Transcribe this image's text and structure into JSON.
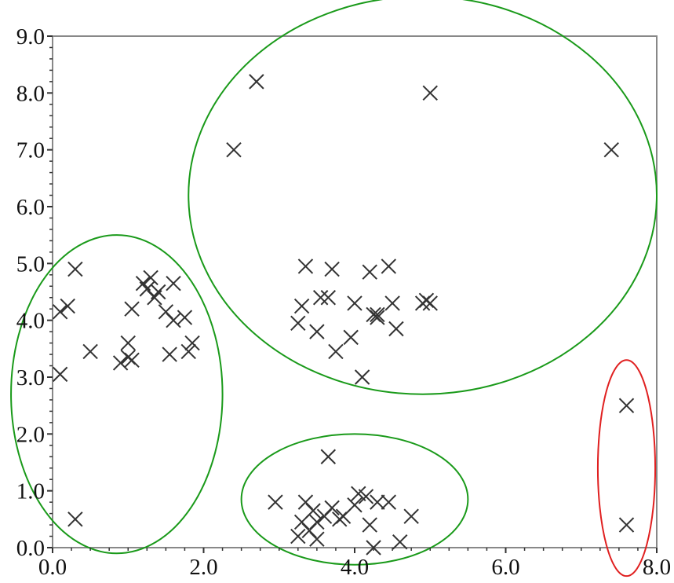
{
  "chart_data": {
    "type": "scatter",
    "title": "",
    "xlabel": "",
    "ylabel": "",
    "xlim": [
      0,
      8
    ],
    "ylim": [
      0,
      9
    ],
    "xticks": [
      "0.0",
      "2.0",
      "4.0",
      "6.0",
      "8.0"
    ],
    "yticks": [
      "0.0",
      "1.0",
      "2.0",
      "3.0",
      "4.0",
      "5.0",
      "6.0",
      "7.0",
      "8.0",
      "9.0"
    ],
    "marker": "x",
    "marker_color": "#333333",
    "grid": false,
    "points": [
      {
        "x": 0.1,
        "y": 3.05
      },
      {
        "x": 0.1,
        "y": 4.15
      },
      {
        "x": 0.2,
        "y": 4.25
      },
      {
        "x": 0.3,
        "y": 4.9
      },
      {
        "x": 0.3,
        "y": 0.5
      },
      {
        "x": 0.5,
        "y": 3.45
      },
      {
        "x": 0.9,
        "y": 3.25
      },
      {
        "x": 1.0,
        "y": 3.35
      },
      {
        "x": 1.0,
        "y": 3.6
      },
      {
        "x": 1.05,
        "y": 3.3
      },
      {
        "x": 1.05,
        "y": 4.2
      },
      {
        "x": 1.2,
        "y": 4.65
      },
      {
        "x": 1.25,
        "y": 4.55
      },
      {
        "x": 1.3,
        "y": 4.75
      },
      {
        "x": 1.35,
        "y": 4.4
      },
      {
        "x": 1.4,
        "y": 4.5
      },
      {
        "x": 1.5,
        "y": 4.15
      },
      {
        "x": 1.55,
        "y": 3.4
      },
      {
        "x": 1.6,
        "y": 4.65
      },
      {
        "x": 1.6,
        "y": 4.0
      },
      {
        "x": 1.75,
        "y": 4.05
      },
      {
        "x": 1.8,
        "y": 3.45
      },
      {
        "x": 1.85,
        "y": 3.6
      },
      {
        "x": 2.4,
        "y": 7.0
      },
      {
        "x": 2.7,
        "y": 8.2
      },
      {
        "x": 5.0,
        "y": 8.0
      },
      {
        "x": 7.4,
        "y": 7.0
      },
      {
        "x": 3.25,
        "y": 3.95
      },
      {
        "x": 3.3,
        "y": 4.25
      },
      {
        "x": 3.35,
        "y": 4.95
      },
      {
        "x": 3.5,
        "y": 3.8
      },
      {
        "x": 3.55,
        "y": 4.4
      },
      {
        "x": 3.65,
        "y": 4.4
      },
      {
        "x": 3.7,
        "y": 4.9
      },
      {
        "x": 3.75,
        "y": 3.45
      },
      {
        "x": 3.95,
        "y": 3.7
      },
      {
        "x": 4.0,
        "y": 4.3
      },
      {
        "x": 4.1,
        "y": 3.0
      },
      {
        "x": 4.2,
        "y": 4.85
      },
      {
        "x": 4.25,
        "y": 4.1
      },
      {
        "x": 4.3,
        "y": 4.05
      },
      {
        "x": 4.3,
        "y": 4.1
      },
      {
        "x": 4.45,
        "y": 4.95
      },
      {
        "x": 4.5,
        "y": 4.3
      },
      {
        "x": 4.55,
        "y": 3.85
      },
      {
        "x": 4.9,
        "y": 4.3
      },
      {
        "x": 4.95,
        "y": 4.35
      },
      {
        "x": 5.0,
        "y": 4.3
      },
      {
        "x": 2.95,
        "y": 0.8
      },
      {
        "x": 3.25,
        "y": 0.2
      },
      {
        "x": 3.3,
        "y": 0.45
      },
      {
        "x": 3.35,
        "y": 0.8
      },
      {
        "x": 3.4,
        "y": 0.3
      },
      {
        "x": 3.45,
        "y": 0.65
      },
      {
        "x": 3.5,
        "y": 0.15
      },
      {
        "x": 3.5,
        "y": 0.45
      },
      {
        "x": 3.6,
        "y": 0.55
      },
      {
        "x": 3.65,
        "y": 1.6
      },
      {
        "x": 3.7,
        "y": 0.7
      },
      {
        "x": 3.8,
        "y": 0.5
      },
      {
        "x": 3.85,
        "y": 0.55
      },
      {
        "x": 4.0,
        "y": 0.75
      },
      {
        "x": 4.05,
        "y": 0.95
      },
      {
        "x": 4.15,
        "y": 0.9
      },
      {
        "x": 4.2,
        "y": 0.4
      },
      {
        "x": 4.25,
        "y": 0.0
      },
      {
        "x": 4.3,
        "y": 0.8
      },
      {
        "x": 4.45,
        "y": 0.8
      },
      {
        "x": 4.6,
        "y": 0.1
      },
      {
        "x": 4.75,
        "y": 0.55
      },
      {
        "x": 7.6,
        "y": 2.5
      },
      {
        "x": 7.6,
        "y": 0.4
      }
    ],
    "annotations": [
      {
        "shape": "ellipse",
        "color": "#1a9a1a",
        "cx": 0.85,
        "cy": 2.7,
        "rx": 1.4,
        "ry": 2.8
      },
      {
        "shape": "ellipse",
        "color": "#1a9a1a",
        "cx": 4.9,
        "cy": 6.2,
        "rx": 3.1,
        "ry": 3.5
      },
      {
        "shape": "ellipse",
        "color": "#1a9a1a",
        "cx": 4.0,
        "cy": 0.85,
        "rx": 1.5,
        "ry": 1.15
      },
      {
        "shape": "ellipse",
        "color": "#e02020",
        "cx": 7.6,
        "cy": 1.4,
        "rx": 0.38,
        "ry": 1.9
      }
    ]
  }
}
